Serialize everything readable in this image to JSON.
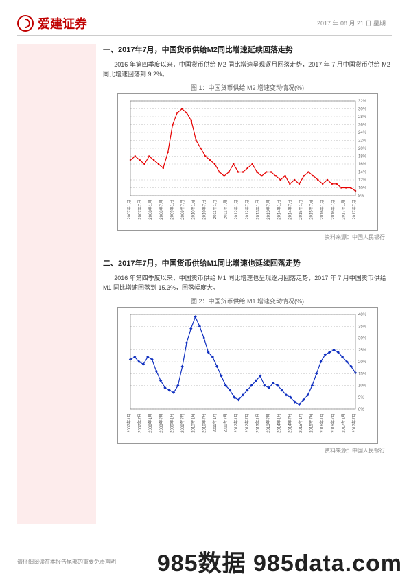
{
  "header": {
    "brand": "爱建证券",
    "date": "2017 年 08 月 21 日  星期一"
  },
  "section1": {
    "title": "一、2017年7月，中国货币供给M2同比增速延续回落走势",
    "body": "2016 年第四季度以来，中国货币供给 M2 同比增速呈现逐月回落走势，2017 年 7 月中国货币供给 M2 同比增速回落到 9.2%。",
    "fig_title": "图 1：中国货币供给 M2 增速变动情况(%)",
    "source": "资料来源：中国人民银行"
  },
  "section2": {
    "title": "二、2017年7月，中国货币供给M1同比增速也延续回落走势",
    "body": "2016 年第四季度以来，中国货币供给 M1 同比增速也呈现逐月回落走势，2017 年 7 月中国货币供给 M1 同比增速回落到 15.3%，回落幅度大。",
    "fig_title": "图 2：中国货币供给 M1 增速变动情况(%)",
    "source": "资料来源：中国人民银行"
  },
  "chart_m2": {
    "type": "line",
    "line_color": "#e60000",
    "marker": "square",
    "marker_size": 2.2,
    "line_width": 1.2,
    "background_color": "#ffffff",
    "border_color": "#999999",
    "grid_color": "#bbbbbb",
    "ylim": [
      8,
      32
    ],
    "ytick_step": 2,
    "x_labels": [
      "2007年1月",
      "2007年7月",
      "2008年1月",
      "2008年7月",
      "2009年1月",
      "2009年7月",
      "2010年1月",
      "2010年7月",
      "2011年1月",
      "2011年7月",
      "2012年1月",
      "2012年7月",
      "2013年1月",
      "2013年7月",
      "2014年1月",
      "2014年7月",
      "2015年1月",
      "2015年7月",
      "2016年1月",
      "2016年7月",
      "2017年1月",
      "2017年7月"
    ],
    "values": [
      17,
      18,
      17,
      16,
      18,
      17,
      16,
      15,
      19,
      26,
      29,
      30,
      29,
      27,
      22,
      20,
      18,
      17,
      16,
      14,
      13,
      14,
      16,
      14,
      14,
      15,
      16,
      14,
      13,
      14,
      14,
      13,
      12,
      13,
      11,
      12,
      11,
      13,
      14,
      13,
      12,
      11,
      12,
      11,
      11,
      10,
      10,
      10,
      9.2
    ],
    "label_fontsize": 6
  },
  "chart_m1": {
    "type": "line",
    "line_color": "#1030c0",
    "marker": "diamond",
    "marker_size": 2.2,
    "line_width": 1.2,
    "background_color": "#ffffff",
    "border_color": "#999999",
    "grid_color": "#bbbbbb",
    "ylim": [
      0,
      40
    ],
    "ytick_step": 5,
    "x_labels": [
      "2007年1月",
      "2007年7月",
      "2008年1月",
      "2008年7月",
      "2009年1月",
      "2009年7月",
      "2010年1月",
      "2010年7月",
      "2011年1月",
      "2011年7月",
      "2012年1月",
      "2012年7月",
      "2013年1月",
      "2013年7月",
      "2014年1月",
      "2014年7月",
      "2015年1月",
      "2015年7月",
      "2016年1月",
      "2016年7月",
      "2017年1月",
      "2017年7月"
    ],
    "values": [
      21,
      22,
      20,
      19,
      22,
      21,
      16,
      12,
      9,
      8,
      7,
      10,
      18,
      28,
      34,
      39,
      35,
      30,
      24,
      22,
      18,
      14,
      10,
      8,
      5,
      4,
      6,
      8,
      10,
      12,
      14,
      10,
      9,
      11,
      10,
      8,
      6,
      5,
      3,
      2,
      4,
      6,
      10,
      15,
      20,
      23,
      24,
      25,
      24,
      22,
      20,
      18,
      15.3
    ],
    "label_fontsize": 6
  },
  "footer": "请仔细阅读在本报告尾部的重要免责声明",
  "watermark": "985数据 985data.com"
}
